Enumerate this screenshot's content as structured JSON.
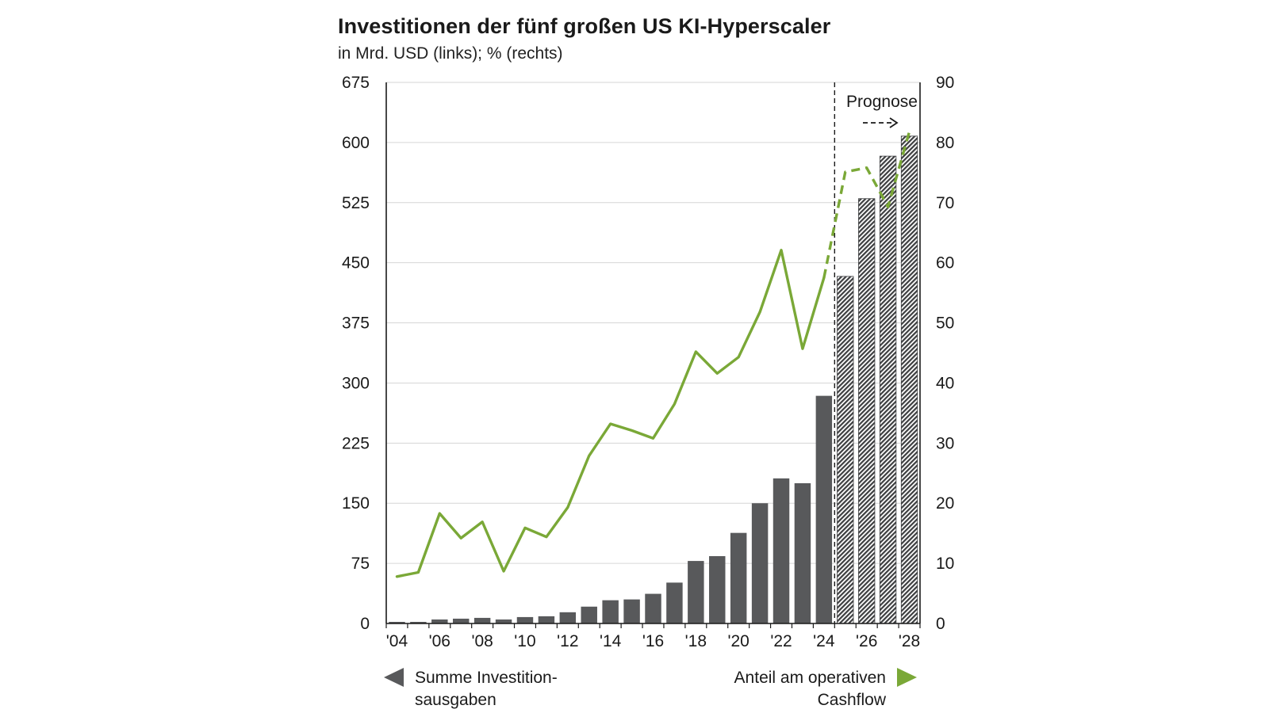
{
  "chart_data": {
    "type": "bar+line",
    "title": "Investitionen der fünf großen US KI-Hyperscaler",
    "subtitle": "in Mrd. USD (links); % (rechts)",
    "forecast_label": "Prognose",
    "forecast_start": 2025,
    "years": [
      2004,
      2005,
      2006,
      2007,
      2008,
      2009,
      2010,
      2011,
      2012,
      2013,
      2014,
      2015,
      2016,
      2017,
      2018,
      2019,
      2020,
      2021,
      2022,
      2023,
      2024,
      2025,
      2026,
      2027,
      2028
    ],
    "x_tick_labels": [
      "'04",
      "'06",
      "'08",
      "'10",
      "'12",
      "'14",
      "'16",
      "'18",
      "'20",
      "'22",
      "'24",
      "'26",
      "'28"
    ],
    "left_axis": {
      "range": [
        0,
        675
      ],
      "ticks": [
        "0",
        "75",
        "150",
        "225",
        "300",
        "375",
        "450",
        "525",
        "600",
        "675"
      ],
      "unit": "Mrd. USD"
    },
    "right_axis": {
      "range": [
        0,
        90
      ],
      "ticks": [
        "0",
        "10",
        "20",
        "30",
        "40",
        "50",
        "60",
        "70",
        "80",
        "90"
      ],
      "unit": "%"
    },
    "series": [
      {
        "name": "Summe Investitionsausgaben",
        "type": "bar",
        "axis": "left",
        "color": "#58595b",
        "values": [
          2,
          2,
          5,
          6,
          7,
          5,
          8,
          9,
          14,
          21,
          29,
          30,
          37,
          51,
          78,
          84,
          113,
          150,
          181,
          175,
          284,
          433,
          530,
          583,
          608
        ]
      },
      {
        "name": "Anteil am operativen Cashflow",
        "type": "line",
        "axis": "right",
        "color": "#7aa837",
        "values": [
          7.8,
          8.5,
          18.3,
          14.2,
          16.9,
          8.7,
          15.9,
          14.4,
          19.3,
          27.9,
          33.2,
          32.1,
          30.8,
          36.5,
          45.2,
          41.6,
          44.3,
          51.8,
          62.1,
          45.7,
          57.5,
          75.1,
          75.8,
          69.3,
          81.8
        ]
      }
    ],
    "legend": {
      "left": {
        "line1": "Summe Investition-",
        "line2": "sausgaben",
        "marker_color": "#58595b"
      },
      "right": {
        "line1": "Anteil am operativen",
        "line2": "Cashflow",
        "marker_color": "#7aa837"
      }
    }
  }
}
